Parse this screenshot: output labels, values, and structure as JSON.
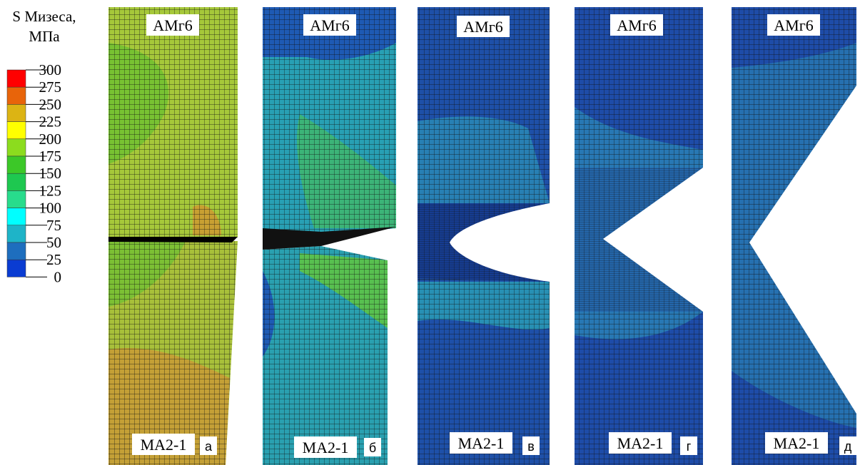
{
  "legend": {
    "title": "S Мизеса,",
    "unit": "МПа",
    "levels": [
      300,
      275,
      250,
      225,
      200,
      175,
      150,
      125,
      100,
      75,
      50,
      25,
      0
    ],
    "colors": [
      "#ff0000",
      "#e8640a",
      "#dcb414",
      "#ffff00",
      "#8cdc1e",
      "#3cc828",
      "#1ec850",
      "#28dc8c",
      "#00ffff",
      "#1eb4c8",
      "#1e6ebe",
      "#0a3cd2"
    ]
  },
  "panels": [
    {
      "top": "АМг6",
      "bottom": "МА2-1",
      "letter": "а"
    },
    {
      "top": "АМг6",
      "bottom": "МА2-1",
      "letter": "б"
    },
    {
      "top": "АМг6",
      "bottom": "МА2-1",
      "letter": "в"
    },
    {
      "top": "АМг6",
      "bottom": "МА2-1",
      "letter": "г"
    },
    {
      "top": "АМг6",
      "bottom": "МА2-1",
      "letter": "д"
    }
  ]
}
